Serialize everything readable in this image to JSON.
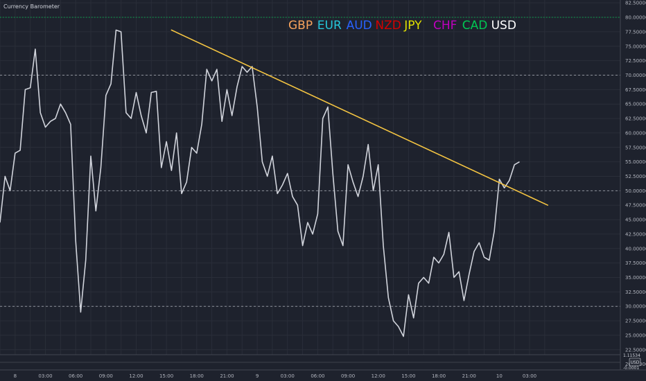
{
  "chart_data": {
    "type": "line",
    "title": "Currency Barometer",
    "legend": {
      "placement": "top-center",
      "entries": [
        {
          "label": "GBP",
          "color": "#f7a35c"
        },
        {
          "label": "EUR",
          "color": "#26c6da"
        },
        {
          "label": "AUD",
          "color": "#2962ff"
        },
        {
          "label": "NZD",
          "color": "#d50000"
        },
        {
          "label": "JPY",
          "color": "#e0e000"
        },
        {
          "label": "CHF",
          "color": "#c000c0"
        },
        {
          "label": "CAD",
          "color": "#00c853"
        },
        {
          "label": "USD",
          "color": "#ffffff"
        }
      ]
    },
    "y_axis": {
      "ylim": [
        19.0,
        83.0
      ],
      "ticks": [
        "82.50000",
        "80.00000",
        "77.50000",
        "75.00000",
        "72.50000",
        "70.00000",
        "67.50000",
        "65.00000",
        "62.50000",
        "60.00000",
        "57.50000",
        "55.00000",
        "52.50000",
        "50.00000",
        "47.50000",
        "45.00000",
        "42.50000",
        "40.00000",
        "37.50000",
        "35.00000",
        "32.50000",
        "30.00000",
        "27.50000",
        "25.00000",
        "22.50000",
        "20.00000"
      ],
      "tick_values": [
        82.5,
        80,
        77.5,
        75,
        72.5,
        70,
        67.5,
        65,
        62.5,
        60,
        57.5,
        55,
        52.5,
        50,
        47.5,
        45,
        42.5,
        40,
        37.5,
        35,
        32.5,
        30,
        27.5,
        25,
        22.5,
        20
      ]
    },
    "x_axis": {
      "xlim": [
        0,
        61.5
      ],
      "ticks": [
        {
          "label": "8",
          "x": 1.5
        },
        {
          "label": "03:00",
          "x": 4.5
        },
        {
          "label": "06:00",
          "x": 7.5
        },
        {
          "label": "09:00",
          "x": 10.5
        },
        {
          "label": "12:00",
          "x": 13.5
        },
        {
          "label": "15:00",
          "x": 16.5
        },
        {
          "label": "18:00",
          "x": 19.5
        },
        {
          "label": "21:00",
          "x": 22.5
        },
        {
          "label": "9",
          "x": 25.5
        },
        {
          "label": "03:00",
          "x": 28.5
        },
        {
          "label": "06:00",
          "x": 31.5
        },
        {
          "label": "09:00",
          "x": 34.5
        },
        {
          "label": "12:00",
          "x": 37.5
        },
        {
          "label": "15:00",
          "x": 40.5
        },
        {
          "label": "18:00",
          "x": 43.5
        },
        {
          "label": "21:00",
          "x": 46.5
        },
        {
          "label": "10",
          "x": 49.5
        },
        {
          "label": "03:00",
          "x": 52.5
        }
      ]
    },
    "reference_lines": [
      {
        "y": 80,
        "color": "#00c853",
        "style": "dotted"
      },
      {
        "y": 70,
        "color": "#b2b5be",
        "style": "dashed"
      },
      {
        "y": 50,
        "color": "#b2b5be",
        "style": "dashed"
      },
      {
        "y": 30,
        "color": "#b2b5be",
        "style": "dashed"
      },
      {
        "y": 20,
        "color": "#d50000",
        "style": "dotted"
      }
    ],
    "trendline": {
      "color": "#f5c542",
      "points": [
        [
          17.0,
          77.8
        ],
        [
          54.3,
          47.5
        ]
      ]
    },
    "series": [
      {
        "color": "#d1d4dc",
        "points": [
          [
            0,
            44.5
          ],
          [
            0.5,
            52.5
          ],
          [
            1,
            50
          ],
          [
            1.5,
            56.5
          ],
          [
            2,
            57
          ],
          [
            2.5,
            67.5
          ],
          [
            3,
            67.8
          ],
          [
            3.5,
            74.5
          ],
          [
            4,
            63.5
          ],
          [
            4.5,
            61
          ],
          [
            5,
            62
          ],
          [
            5.5,
            62.5
          ],
          [
            6,
            65
          ],
          [
            6.5,
            63.5
          ],
          [
            7,
            61.5
          ],
          [
            7.5,
            41.5
          ],
          [
            8,
            29
          ],
          [
            8.5,
            38
          ],
          [
            9,
            56
          ],
          [
            9.5,
            46.5
          ],
          [
            10,
            54
          ],
          [
            10.5,
            66.5
          ],
          [
            11,
            68.5
          ],
          [
            11.5,
            77.8
          ],
          [
            12,
            77.5
          ],
          [
            12.5,
            63.5
          ],
          [
            13,
            62.5
          ],
          [
            13.5,
            67
          ],
          [
            14,
            63
          ],
          [
            14.5,
            60
          ],
          [
            15,
            67
          ],
          [
            15.5,
            67.2
          ],
          [
            16,
            54
          ],
          [
            16.5,
            58.5
          ],
          [
            17,
            53.5
          ],
          [
            17.5,
            60
          ],
          [
            18,
            49.5
          ],
          [
            18.5,
            51.5
          ],
          [
            19,
            57.5
          ],
          [
            19.5,
            56.5
          ],
          [
            20,
            61.5
          ],
          [
            20.5,
            71
          ],
          [
            21,
            69
          ],
          [
            21.5,
            71
          ],
          [
            22,
            62
          ],
          [
            22.5,
            67.5
          ],
          [
            23,
            63
          ],
          [
            23.5,
            68
          ],
          [
            24,
            71.5
          ],
          [
            24.5,
            70.5
          ],
          [
            25,
            71.5
          ],
          [
            25.5,
            64.5
          ],
          [
            26,
            55
          ],
          [
            26.5,
            52.5
          ],
          [
            27,
            56
          ],
          [
            27.5,
            49.5
          ],
          [
            28,
            51
          ],
          [
            28.5,
            53
          ],
          [
            29,
            49
          ],
          [
            29.5,
            47.5
          ],
          [
            30,
            40.5
          ],
          [
            30.5,
            44.5
          ],
          [
            31,
            42.5
          ],
          [
            31.5,
            46
          ],
          [
            32,
            62.5
          ],
          [
            32.5,
            64.5
          ],
          [
            33,
            53
          ],
          [
            33.5,
            43
          ],
          [
            34,
            40.5
          ],
          [
            34.5,
            54.5
          ],
          [
            35,
            51.5
          ],
          [
            35.5,
            49
          ],
          [
            36,
            52.5
          ],
          [
            36.5,
            58
          ],
          [
            37,
            50
          ],
          [
            37.5,
            54.5
          ],
          [
            38,
            40.5
          ],
          [
            38.5,
            31.5
          ],
          [
            39,
            27.5
          ],
          [
            39.5,
            26.5
          ],
          [
            40,
            24.8
          ],
          [
            40.5,
            32
          ],
          [
            41,
            28
          ],
          [
            41.5,
            34
          ],
          [
            42,
            35
          ],
          [
            42.5,
            34
          ],
          [
            43,
            38.5
          ],
          [
            43.5,
            37.5
          ],
          [
            44,
            39
          ],
          [
            44.5,
            42.8
          ],
          [
            45,
            35
          ],
          [
            45.5,
            36
          ],
          [
            46,
            31
          ],
          [
            46.5,
            35.5
          ],
          [
            47,
            39.5
          ],
          [
            47.5,
            41
          ],
          [
            48,
            38.5
          ],
          [
            48.5,
            38
          ],
          [
            49,
            43
          ],
          [
            49.5,
            52
          ],
          [
            50,
            50.5
          ],
          [
            50.5,
            51.8
          ],
          [
            51,
            54.5
          ],
          [
            51.5,
            55
          ]
        ]
      }
    ],
    "bottom_panel": {
      "label": "1.11534",
      "label2": "-0.0001"
    },
    "axis_badge": {
      "label": "USD"
    }
  }
}
